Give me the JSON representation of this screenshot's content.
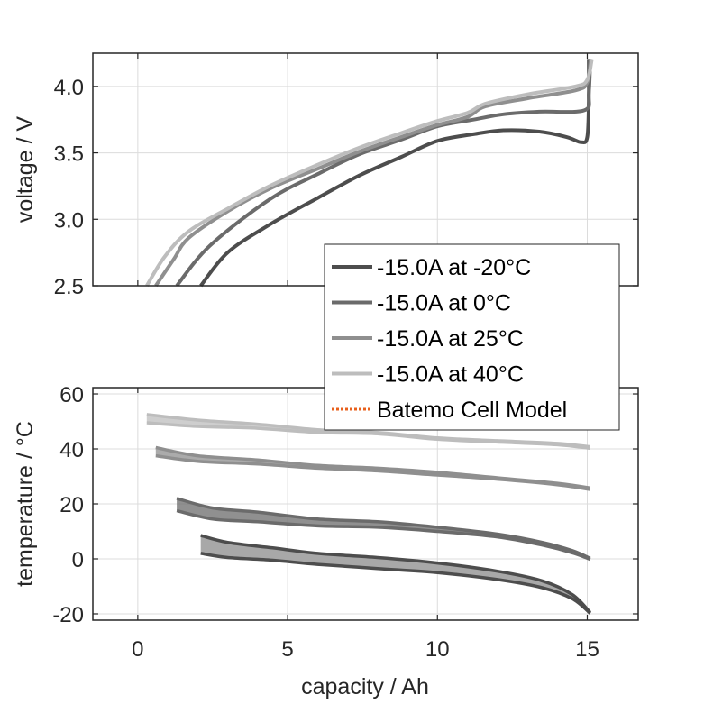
{
  "chart_data": [
    {
      "type": "line",
      "panel": "top",
      "title": "",
      "xlabel": "",
      "ylabel": "voltage / V",
      "xlim": [
        -1.5,
        16.7
      ],
      "ylim": [
        2.5,
        4.25
      ],
      "xticks": [
        0,
        5,
        10,
        15
      ],
      "yticks": [
        2.5,
        3.0,
        3.5,
        4.0
      ],
      "ytick_labels": [
        "2.5",
        "3.0",
        "3.5",
        "4.0"
      ],
      "grid": true,
      "series": [
        {
          "name": "-15.0A at -20°C",
          "color": "#4d4d4d",
          "x": [
            2.1,
            3.0,
            4.4,
            6.0,
            7.4,
            8.8,
            10.0,
            11.2,
            12.2,
            13.4,
            14.3,
            14.8,
            15.0,
            15.05,
            15.05
          ],
          "y": [
            2.5,
            2.75,
            2.96,
            3.16,
            3.33,
            3.47,
            3.59,
            3.64,
            3.67,
            3.66,
            3.62,
            3.58,
            3.62,
            3.9,
            4.2
          ]
        },
        {
          "name": "-15.0A at 0°C",
          "color": "#6b6b6b",
          "x": [
            1.3,
            2.4,
            4.4,
            6.0,
            7.4,
            8.8,
            10.0,
            11.2,
            12.2,
            13.4,
            14.9,
            15.05,
            15.1
          ],
          "y": [
            2.5,
            2.8,
            3.15,
            3.34,
            3.49,
            3.6,
            3.7,
            3.75,
            3.79,
            3.81,
            3.82,
            3.95,
            4.2
          ]
        },
        {
          "name": "-15.0A at 25°C",
          "color": "#8f8f8f",
          "x": [
            0.6,
            1.2,
            1.7,
            3.0,
            4.4,
            6.0,
            7.4,
            8.8,
            10.0,
            11.0,
            11.6,
            13.0,
            14.6,
            15.0,
            15.1
          ],
          "y": [
            2.5,
            2.7,
            2.86,
            3.06,
            3.23,
            3.38,
            3.51,
            3.62,
            3.71,
            3.77,
            3.85,
            3.91,
            3.97,
            4.03,
            4.2
          ]
        },
        {
          "name": "-15.0A at 40°C",
          "color": "#bdbdbd",
          "x": [
            0.3,
            0.9,
            1.7,
            3.0,
            4.4,
            6.0,
            7.4,
            8.8,
            10.0,
            11.0,
            11.6,
            13.0,
            14.6,
            15.0,
            15.15
          ],
          "y": [
            2.5,
            2.72,
            2.91,
            3.08,
            3.25,
            3.41,
            3.54,
            3.65,
            3.74,
            3.8,
            3.87,
            3.94,
            4.0,
            4.05,
            4.2
          ]
        }
      ]
    },
    {
      "type": "area",
      "panel": "bottom",
      "title": "",
      "xlabel": "capacity / Ah",
      "ylabel": "temperature / °C",
      "xlim": [
        -1.5,
        16.7
      ],
      "ylim": [
        -22.3,
        62.3
      ],
      "xticks": [
        0,
        5,
        10,
        15
      ],
      "xtick_labels": [
        "0",
        "5",
        "10",
        "15"
      ],
      "yticks": [
        -20,
        0,
        20,
        40,
        60
      ],
      "ytick_labels": [
        "-20",
        "0",
        "20",
        "40",
        "60"
      ],
      "grid": true,
      "series": [
        {
          "name": "-15.0A at 40°C",
          "color": "#bdbdbd",
          "x": [
            0.3,
            2.0,
            4.0,
            6.0,
            8.0,
            10.0,
            12.0,
            14.0,
            15.1
          ],
          "upper": [
            52.5,
            50.5,
            49.0,
            47.0,
            46.0,
            44.0,
            43.0,
            42.0,
            40.8
          ],
          "lower": [
            49.5,
            48.2,
            47.5,
            46.0,
            45.5,
            43.5,
            42.5,
            41.5,
            40.2
          ]
        },
        {
          "name": "-15.0A at 25°C",
          "color": "#8f8f8f",
          "x": [
            0.6,
            2.0,
            4.0,
            6.0,
            8.0,
            10.0,
            12.0,
            14.0,
            15.1
          ],
          "upper": [
            40.5,
            37.5,
            36.0,
            34.0,
            33.0,
            31.5,
            29.5,
            27.5,
            25.8
          ],
          "lower": [
            37.5,
            35.5,
            34.5,
            33.0,
            32.0,
            30.5,
            29.0,
            27.0,
            25.2
          ]
        },
        {
          "name": "-15.0A at 0°C",
          "color": "#6b6b6b",
          "x": [
            1.3,
            2.5,
            4.0,
            6.0,
            8.0,
            10.0,
            12.0,
            13.5,
            14.5,
            15.1
          ],
          "upper": [
            22.0,
            18.5,
            17.0,
            14.5,
            13.5,
            11.5,
            9.0,
            6.0,
            3.0,
            0.2
          ],
          "lower": [
            17.5,
            14.5,
            13.5,
            12.0,
            11.5,
            10.0,
            8.0,
            5.0,
            2.2,
            -0.2
          ]
        },
        {
          "name": "-15.0A at -20°C",
          "color": "#4d4d4d",
          "x": [
            2.1,
            3.0,
            4.5,
            6.0,
            8.0,
            10.0,
            12.0,
            13.5,
            14.5,
            15.1
          ],
          "upper": [
            8.5,
            6.0,
            4.0,
            2.0,
            0.5,
            -1.5,
            -4.5,
            -8.0,
            -13.0,
            -19.5
          ],
          "lower": [
            2.0,
            0.5,
            -0.5,
            -2.0,
            -3.5,
            -5.0,
            -7.5,
            -10.5,
            -14.5,
            -19.8
          ]
        }
      ]
    }
  ],
  "legend": {
    "placement": "right-center",
    "entries": [
      {
        "label": "-15.0A at -20°C",
        "color": "#4d4d4d",
        "style": "solid"
      },
      {
        "label": "-15.0A at 0°C",
        "color": "#6b6b6b",
        "style": "solid"
      },
      {
        "label": "-15.0A at 25°C",
        "color": "#8f8f8f",
        "style": "solid"
      },
      {
        "label": "-15.0A at 40°C",
        "color": "#bdbdbd",
        "style": "solid"
      },
      {
        "label": "Batemo Cell Model",
        "color": "#e8601c",
        "style": "dotted"
      }
    ]
  },
  "colors": {
    "axis": "#262626",
    "grid": "#dcdcdc"
  }
}
